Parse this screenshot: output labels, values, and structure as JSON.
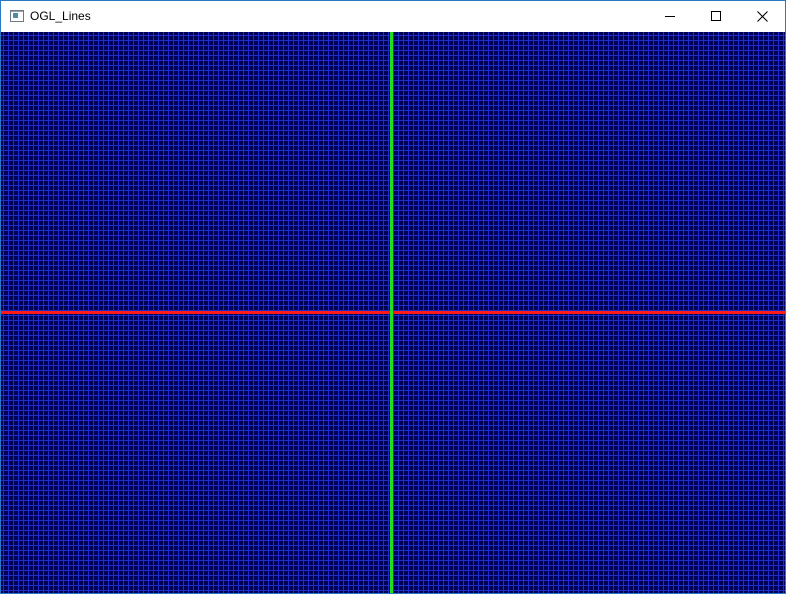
{
  "window": {
    "title": "OGL_Lines",
    "app_icon": "window-app-icon",
    "controls": [
      {
        "name": "minimize",
        "icon": "minimize-icon"
      },
      {
        "name": "maximize",
        "icon": "maximize-icon"
      },
      {
        "name": "close",
        "icon": "close-icon"
      }
    ]
  },
  "scene": {
    "background_color": "#000055",
    "grid_color": "#1e2fc8",
    "x_axis_color": "#ff1a1a",
    "y_axis_color": "#22dd22"
  }
}
